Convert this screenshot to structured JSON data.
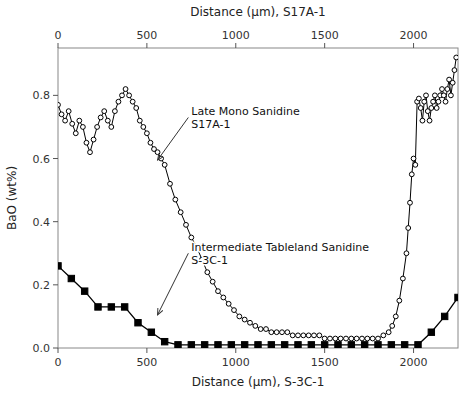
{
  "chart_data": {
    "type": "line",
    "x_label": "Distance (μm), S-3C-1",
    "x2_label": "Distance (μm), S17A-1",
    "y_label": "BaO (wt%)",
    "xlim": [
      0,
      2250
    ],
    "xticks": [
      0,
      500,
      1000,
      1500,
      2000
    ],
    "x2lim": [
      0,
      2250
    ],
    "x2ticks": [
      0,
      500,
      1000,
      1500,
      2000
    ],
    "ylim": [
      0,
      0.95
    ],
    "yticks": [
      {
        "value": 0.0,
        "label": "0.0"
      },
      0.2,
      0.4,
      0.6,
      0.8
    ],
    "series": [
      {
        "color": "#000000",
        "marker": "circle-open",
        "line_style": "solid",
        "x": [
          0,
          20,
          40,
          60,
          80,
          100,
          120,
          140,
          160,
          180,
          200,
          220,
          240,
          260,
          280,
          300,
          320,
          340,
          360,
          380,
          400,
          420,
          440,
          460,
          480,
          500,
          520,
          540,
          560,
          580,
          600,
          630,
          660,
          690,
          720,
          750,
          780,
          810,
          840,
          870,
          900,
          930,
          960,
          990,
          1020,
          1050,
          1080,
          1110,
          1140,
          1170,
          1200,
          1230,
          1260,
          1290,
          1320,
          1350,
          1380,
          1410,
          1440,
          1470,
          1500,
          1530,
          1560,
          1590,
          1620,
          1650,
          1680,
          1710,
          1740,
          1770,
          1800,
          1830,
          1860,
          1880,
          1900,
          1920,
          1940,
          1960,
          1970,
          1980,
          1990,
          2000,
          2010,
          2020,
          2030,
          2040,
          2050,
          2060,
          2070,
          2080,
          2090,
          2100,
          2110,
          2120,
          2130,
          2140,
          2150,
          2160,
          2170,
          2180,
          2190,
          2200,
          2210,
          2220,
          2230,
          2240
        ],
        "values": [
          0.77,
          0.74,
          0.72,
          0.75,
          0.71,
          0.68,
          0.72,
          0.7,
          0.65,
          0.62,
          0.66,
          0.7,
          0.73,
          0.75,
          0.72,
          0.7,
          0.75,
          0.78,
          0.8,
          0.82,
          0.8,
          0.78,
          0.76,
          0.72,
          0.7,
          0.68,
          0.65,
          0.63,
          0.62,
          0.6,
          0.58,
          0.52,
          0.47,
          0.43,
          0.39,
          0.35,
          0.32,
          0.28,
          0.24,
          0.21,
          0.18,
          0.16,
          0.14,
          0.12,
          0.1,
          0.09,
          0.08,
          0.07,
          0.06,
          0.06,
          0.05,
          0.05,
          0.05,
          0.05,
          0.04,
          0.04,
          0.04,
          0.04,
          0.04,
          0.04,
          0.03,
          0.03,
          0.03,
          0.03,
          0.03,
          0.03,
          0.03,
          0.03,
          0.03,
          0.03,
          0.03,
          0.04,
          0.05,
          0.07,
          0.1,
          0.15,
          0.22,
          0.3,
          0.38,
          0.46,
          0.55,
          0.6,
          0.58,
          0.78,
          0.79,
          0.76,
          0.72,
          0.78,
          0.8,
          0.75,
          0.72,
          0.76,
          0.78,
          0.8,
          0.76,
          0.78,
          0.8,
          0.82,
          0.8,
          0.78,
          0.82,
          0.85,
          0.8,
          0.84,
          0.88,
          0.92
        ]
      },
      {
        "color": "#000000",
        "marker": "square",
        "line_style": "solid",
        "x": [
          0,
          75,
          150,
          225,
          300,
          375,
          450,
          525,
          600,
          675,
          750,
          825,
          900,
          975,
          1050,
          1125,
          1200,
          1275,
          1350,
          1425,
          1500,
          1575,
          1650,
          1725,
          1800,
          1875,
          1950,
          2025,
          2100,
          2175,
          2250
        ],
        "values": [
          0.26,
          0.22,
          0.18,
          0.13,
          0.13,
          0.13,
          0.08,
          0.05,
          0.02,
          0.01,
          0.01,
          0.01,
          0.01,
          0.01,
          0.01,
          0.01,
          0.01,
          0.01,
          0.01,
          0.01,
          0.01,
          0.01,
          0.01,
          0.01,
          0.01,
          0.01,
          0.01,
          0.01,
          0.05,
          0.1,
          0.16
        ]
      }
    ],
    "annotations": [
      {
        "text": "Late Mono Sanidine\nS17A-1",
        "point": [
          560,
          0.595
        ],
        "text_at": [
          750,
          0.73
        ]
      },
      {
        "text": "Intermediate Tableland Sanidine\nS-3C-1",
        "point": [
          560,
          0.105
        ],
        "text_at": [
          750,
          0.3
        ]
      }
    ]
  }
}
